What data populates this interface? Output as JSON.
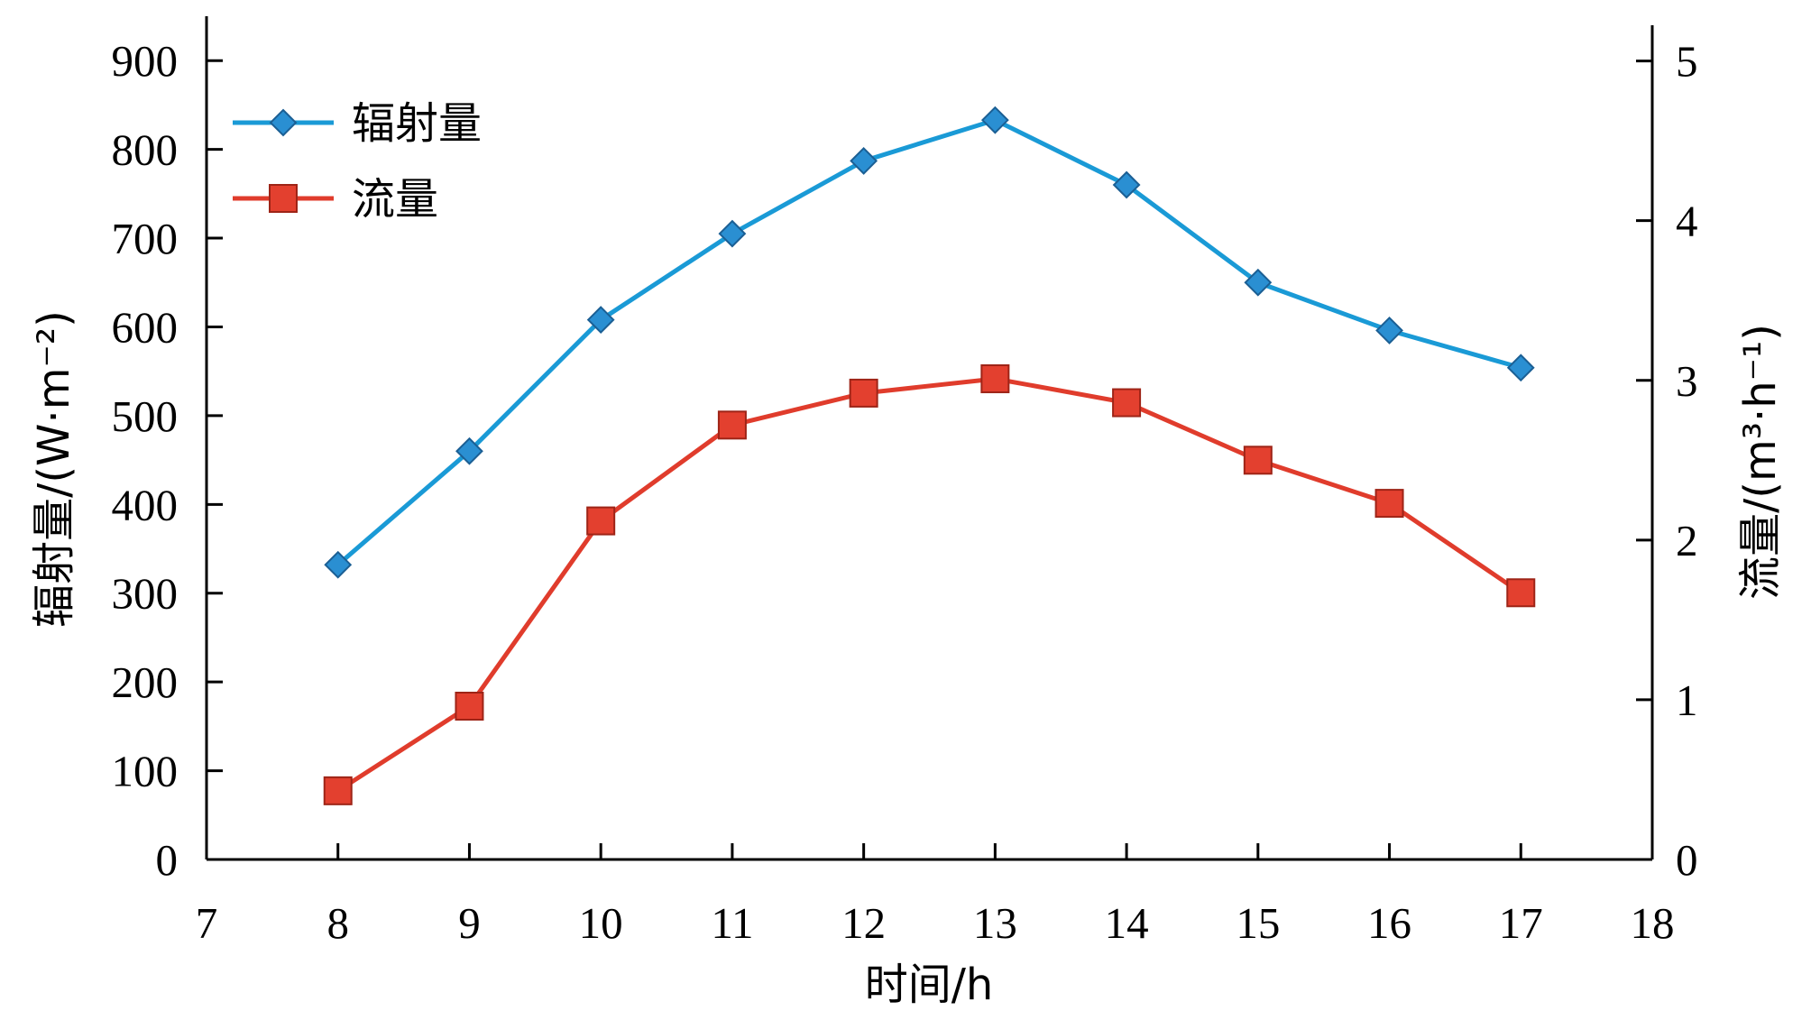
{
  "chart_data": {
    "type": "line",
    "x": [
      8,
      9,
      10,
      11,
      12,
      13,
      14,
      15,
      16,
      17
    ],
    "xlim": [
      7,
      18
    ],
    "xticks": [
      7,
      8,
      9,
      10,
      11,
      12,
      13,
      14,
      15,
      16,
      17,
      18
    ],
    "xlabel": "时间/h",
    "ylabel_left": "辐射量/(W·m⁻²)",
    "ylabel_right": "流量/(m³·h⁻¹)",
    "ylim_left": [
      0,
      950
    ],
    "yticks_left": [
      0,
      100,
      200,
      300,
      400,
      500,
      600,
      700,
      800,
      900
    ],
    "ylim_right": [
      0,
      5.28
    ],
    "yticks_right": [
      0,
      1,
      2,
      3,
      4,
      5
    ],
    "grid": false,
    "legend_position": "top-left",
    "series": [
      {
        "name": "辐射量",
        "axis": "left",
        "marker": "diamond",
        "color": "#1a9ad6",
        "marker_color": "#2a8fd2",
        "values": [
          332,
          460,
          608,
          705,
          787,
          833,
          760,
          650,
          596,
          554
        ]
      },
      {
        "name": "流量",
        "axis": "right",
        "marker": "square",
        "color": "#e03c2c",
        "marker_color": "#e3402f",
        "values": [
          0.43,
          0.96,
          2.12,
          2.72,
          2.92,
          3.01,
          2.86,
          2.5,
          2.23,
          1.67
        ]
      }
    ]
  }
}
